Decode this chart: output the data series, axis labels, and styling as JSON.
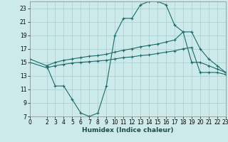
{
  "xlabel": "Humidex (Indice chaleur)",
  "bg_color": "#cceaea",
  "grid_color": "#aacccc",
  "line_color": "#1a6b6b",
  "xlim": [
    0,
    23
  ],
  "ylim": [
    7,
    24
  ],
  "yticks": [
    7,
    9,
    11,
    13,
    15,
    17,
    19,
    21,
    23
  ],
  "xticks": [
    0,
    2,
    3,
    4,
    5,
    6,
    7,
    8,
    9,
    10,
    11,
    12,
    13,
    14,
    15,
    16,
    17,
    18,
    19,
    20,
    21,
    22,
    23
  ],
  "line1_x": [
    2,
    3,
    4,
    5,
    6,
    7,
    8,
    9,
    10,
    11,
    12,
    13,
    14,
    15,
    16,
    17,
    18,
    19,
    20,
    21,
    22,
    23
  ],
  "line1_y": [
    14.5,
    11.5,
    11.5,
    9.5,
    7.5,
    7.0,
    7.5,
    11.5,
    19.0,
    21.5,
    21.5,
    23.5,
    24.0,
    24.0,
    23.5,
    20.5,
    19.5,
    15.0,
    15.0,
    14.5,
    14.0,
    13.5
  ],
  "line2_x": [
    0,
    2,
    3,
    4,
    5,
    6,
    7,
    8,
    9,
    10,
    11,
    12,
    13,
    14,
    15,
    16,
    17,
    18,
    19,
    20,
    21,
    22,
    23
  ],
  "line2_y": [
    15.5,
    14.5,
    15.0,
    15.3,
    15.5,
    15.7,
    15.9,
    16.0,
    16.2,
    16.5,
    16.8,
    17.0,
    17.3,
    17.5,
    17.7,
    18.0,
    18.3,
    19.5,
    19.5,
    17.0,
    15.5,
    14.5,
    13.5
  ],
  "line3_x": [
    0,
    2,
    3,
    4,
    5,
    6,
    7,
    8,
    9,
    10,
    11,
    12,
    13,
    14,
    15,
    16,
    17,
    18,
    19,
    20,
    21,
    22,
    23
  ],
  "line3_y": [
    15.0,
    14.2,
    14.5,
    14.7,
    14.9,
    15.0,
    15.1,
    15.2,
    15.3,
    15.5,
    15.7,
    15.8,
    16.0,
    16.1,
    16.3,
    16.5,
    16.7,
    17.0,
    17.2,
    13.5,
    13.5,
    13.5,
    13.2
  ]
}
